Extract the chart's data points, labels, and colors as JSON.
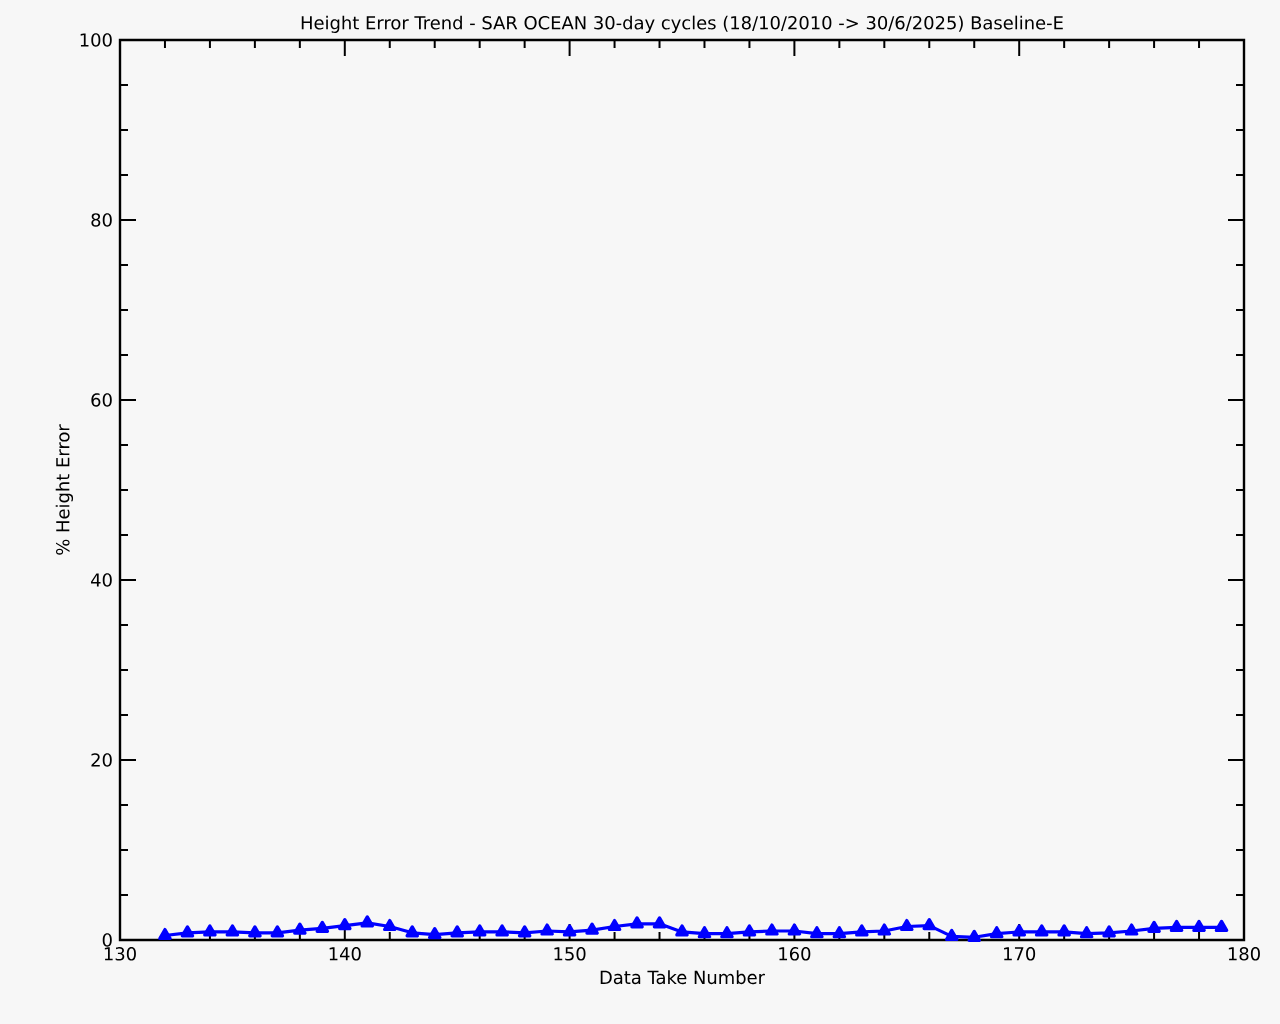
{
  "chart_data": {
    "type": "line",
    "title": "Height Error Trend - SAR OCEAN 30-day cycles (18/10/2010 -> 30/6/2025) Baseline-E",
    "xlabel": "Data Take Number",
    "ylabel": "% Height Error",
    "x": [
      132,
      133,
      134,
      135,
      136,
      137,
      138,
      139,
      140,
      141,
      142,
      143,
      144,
      145,
      146,
      147,
      148,
      149,
      150,
      151,
      152,
      153,
      154,
      155,
      156,
      157,
      158,
      159,
      160,
      161,
      162,
      163,
      164,
      165,
      166,
      167,
      168,
      169,
      170,
      171,
      172,
      173,
      174,
      175,
      176,
      177,
      178,
      179
    ],
    "series": [
      {
        "color": "#0000ff",
        "values": [
          0.5,
          0.8,
          0.9,
          0.9,
          0.8,
          0.8,
          1.1,
          1.3,
          1.6,
          1.9,
          1.5,
          0.8,
          0.6,
          0.8,
          0.9,
          0.9,
          0.8,
          1.0,
          0.9,
          1.1,
          1.5,
          1.8,
          1.8,
          0.9,
          0.7,
          0.7,
          0.9,
          1.0,
          1.0,
          0.7,
          0.7,
          0.9,
          1.0,
          1.5,
          1.6,
          0.4,
          0.3,
          0.7,
          0.9,
          0.9,
          0.9,
          0.7,
          0.8,
          1.0,
          1.3,
          1.4,
          1.4,
          1.4
        ]
      }
    ],
    "xlim": [
      130,
      180
    ],
    "ylim": [
      0,
      100
    ],
    "xticks": [
      130,
      140,
      150,
      160,
      170,
      180
    ],
    "yticks": [
      0,
      20,
      40,
      60,
      80,
      100
    ],
    "grid": false,
    "marker": "triangle",
    "line_style": "solid"
  }
}
